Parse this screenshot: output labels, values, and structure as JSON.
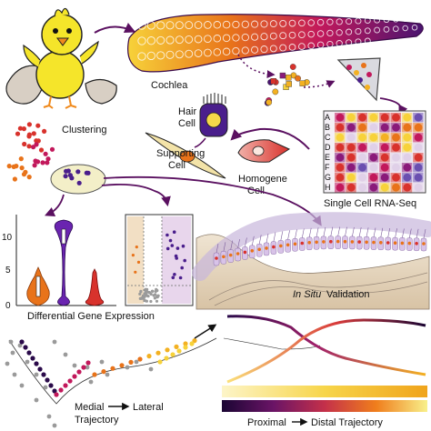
{
  "labels": {
    "cochlea": "Cochlea",
    "clustering": "Clustering",
    "hair_cell_1": "Hair",
    "hair_cell_2": "Cell",
    "supporting_cell_1": "Supporting",
    "supporting_cell_2": "Cell",
    "homogene_cell_1": "Homogene",
    "homogene_cell_2": "Cell",
    "single_cell_rnaseq": "Single Cell RNA-Seq",
    "differential_gene_expression": "Differential Gene Expression",
    "in_situ_prefix": "In Situ",
    "validation": " Validation",
    "medial": "Medial",
    "lateral": "Lateral",
    "trajectory": "Trajectory",
    "proximal": "Proximal",
    "distal_trajectory": "Distal Trajectory"
  },
  "plate_rows": [
    "A",
    "B",
    "C",
    "D",
    "E",
    "F",
    "G",
    "H"
  ],
  "violin_axis_ticks": [
    "0",
    "5",
    "10"
  ],
  "colors": {
    "chick_yellow": "#f5e52a",
    "cochlea_purple": "#6b1a7a",
    "magenta": "#c2185b",
    "orange": "#e8731a",
    "arrow": "#5a1060",
    "hair_cell": "#4a1e8c",
    "gray_cells": "#9a9a9a"
  }
}
